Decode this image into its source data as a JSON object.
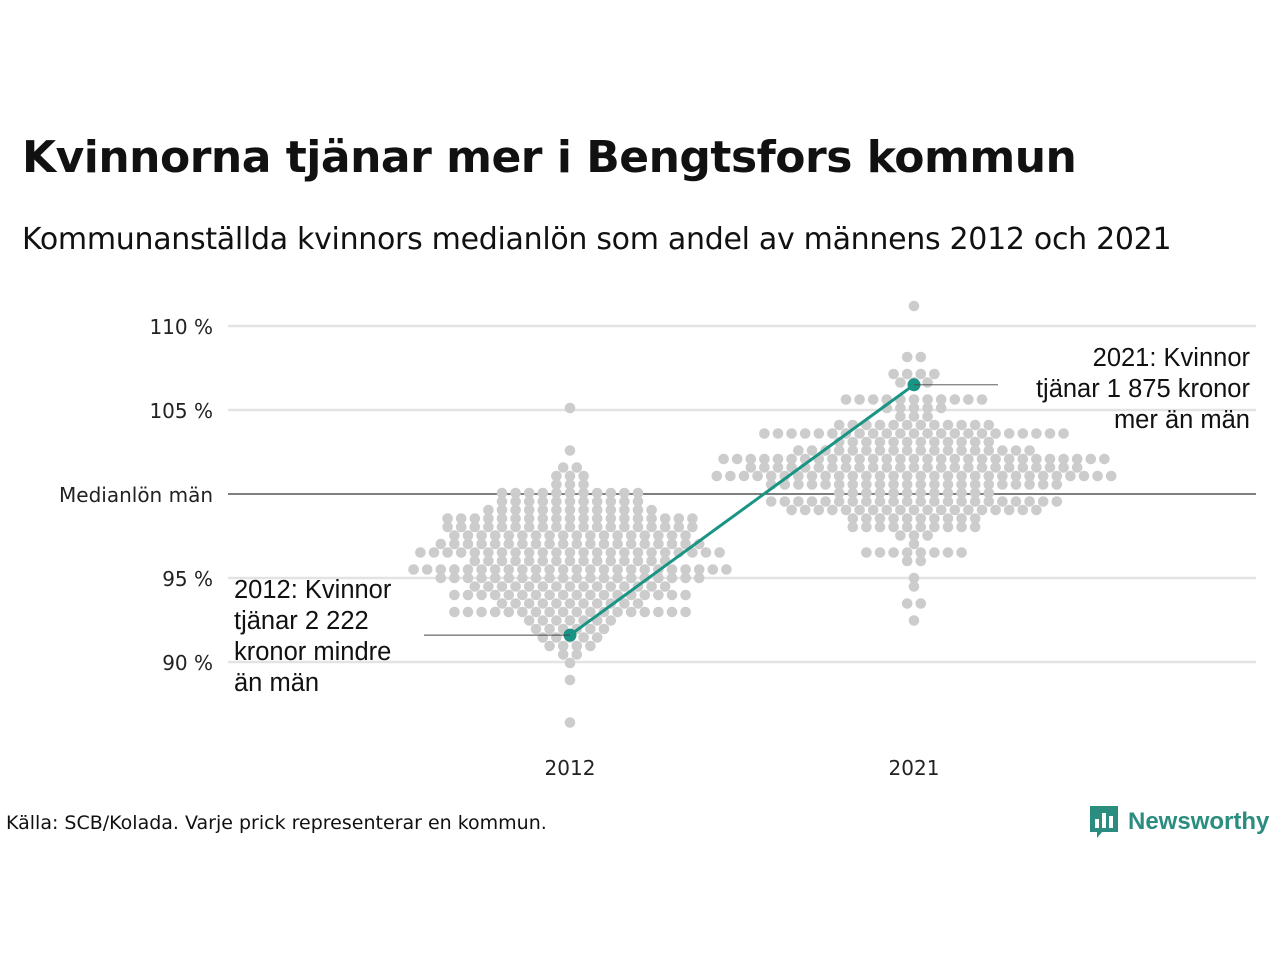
{
  "title": "Kvinnorna tjänar mer i Bengtsfors kommun",
  "subtitle": "Kommunanställda kvinnors medianlön som andel av männens 2012 och 2021",
  "source": "Källa: SCB/Kolada. Varje prick representerar en kommun.",
  "brand": {
    "name": "Newsworthy",
    "color": "#2a8d7f",
    "icon": "bar-chart-logo-icon"
  },
  "colors": {
    "dots": "#cccccc",
    "highlight": "#1a9484",
    "grid": "#e3e3e3",
    "baseline": "#333333"
  },
  "chart_data": {
    "type": "scatter",
    "title": "Kvinnorna tjänar mer i Bengtsfors kommun",
    "ylim": [
      86.5,
      111.5
    ],
    "yticks": [
      {
        "value": 110,
        "label": "110 %"
      },
      {
        "value": 105,
        "label": "105 %"
      },
      {
        "value": 100,
        "label": "Medianlön män"
      },
      {
        "value": 95,
        "label": "95 %"
      },
      {
        "value": 90,
        "label": "90 %"
      }
    ],
    "categories": [
      "2012",
      "2021"
    ],
    "grid": true,
    "dot_distributions": [
      {
        "category": "2012",
        "center": 96,
        "spread": 2.6,
        "min": 86.6,
        "max": 105.0,
        "count": 290
      },
      {
        "category": "2021",
        "center": 101.5,
        "spread": 2.4,
        "min": 92.5,
        "max": 111.2,
        "count": 290
      }
    ],
    "highlight": {
      "name": "Bengtsfors",
      "points": [
        {
          "x": "2012",
          "y": 91.6
        },
        {
          "x": "2021",
          "y": 106.5
        }
      ]
    },
    "annotations": [
      {
        "x": "2012",
        "y": 91.6,
        "lines": [
          "2012: Kvinnor",
          "tjänar 2 222",
          "kronor mindre",
          "än män"
        ]
      },
      {
        "x": "2021",
        "y": 106.5,
        "lines": [
          "2021: Kvinnor",
          "tjänar 1 875 kronor",
          "mer än män"
        ]
      }
    ]
  }
}
